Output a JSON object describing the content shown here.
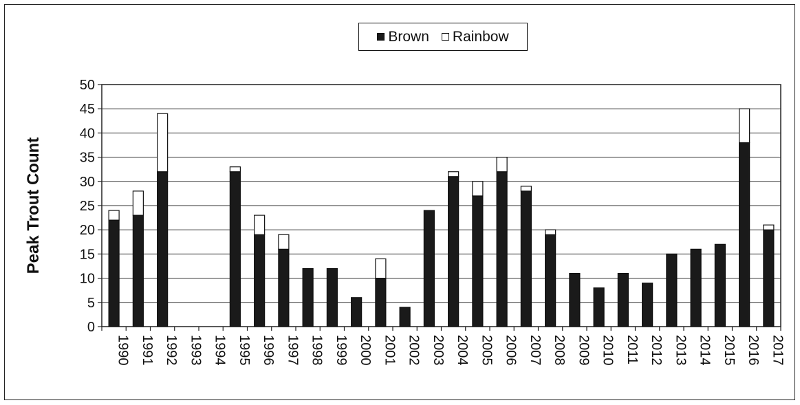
{
  "chart_data": {
    "type": "bar",
    "stacked": true,
    "title": "",
    "xlabel": "",
    "ylabel": "Peak Trout Count",
    "ylim": [
      0,
      50
    ],
    "yticks": [
      0,
      5,
      10,
      15,
      20,
      25,
      30,
      35,
      40,
      45,
      50
    ],
    "grid": true,
    "legend_position": "top-center",
    "categories": [
      "1990",
      "1991",
      "1992",
      "1993",
      "1994",
      "1995",
      "1996",
      "1997",
      "1998",
      "1999",
      "2000",
      "2001",
      "2002",
      "2003",
      "2004",
      "2005",
      "2006",
      "2007",
      "2008",
      "2009",
      "2010",
      "2011",
      "2012",
      "2013",
      "2014",
      "2015",
      "2016",
      "2017"
    ],
    "series": [
      {
        "name": "Brown",
        "color": "#1a1a1a",
        "values": [
          22,
          23,
          32,
          0,
          0,
          32,
          19,
          16,
          12,
          12,
          6,
          10,
          4,
          24,
          31,
          27,
          32,
          28,
          19,
          11,
          8,
          11,
          9,
          15,
          16,
          17,
          38,
          20
        ]
      },
      {
        "name": "Rainbow",
        "color": "#ffffff",
        "values": [
          2,
          5,
          12,
          0,
          0,
          1,
          4,
          3,
          0,
          0,
          0,
          4,
          0,
          0,
          1,
          3,
          3,
          1,
          1,
          0,
          0,
          0,
          0,
          0,
          0,
          0,
          7,
          1
        ]
      }
    ]
  }
}
